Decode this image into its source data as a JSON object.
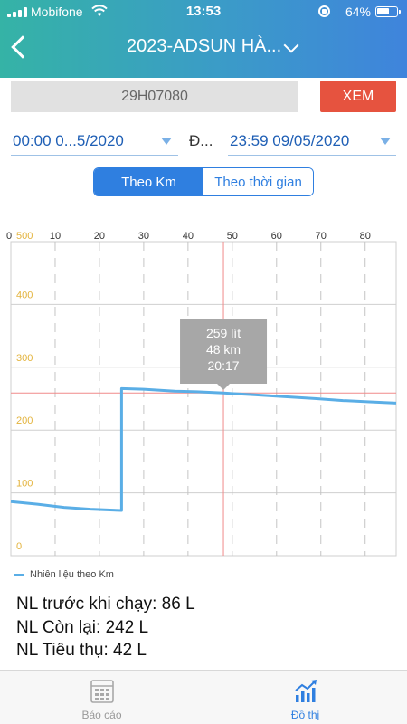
{
  "status_bar": {
    "carrier": "Mobifone",
    "time": "13:53",
    "battery": "64%"
  },
  "header": {
    "title": "2023-ADSUN HÀ..."
  },
  "plate": {
    "value": "29H07080"
  },
  "view_button": "XEM",
  "date_range": {
    "from": "00:00 0...5/2020",
    "separator": "Đ...",
    "to": "23:59 09/05/2020"
  },
  "mode_toggle": {
    "by_km": "Theo Km",
    "by_time": "Theo thời gian",
    "selected": "by_km"
  },
  "chart_data": {
    "type": "line",
    "x_axis": {
      "range": [
        0,
        87
      ],
      "ticks": [
        0,
        10,
        20,
        30,
        40,
        50,
        60,
        70,
        80
      ],
      "position": "top"
    },
    "y_axis": {
      "range": [
        0,
        500
      ],
      "ticks": [
        0,
        100,
        200,
        300,
        400,
        500
      ]
    },
    "grid": true,
    "series": [
      {
        "name": "Nhiên liệu theo Km",
        "color": "#5aaee6",
        "points": [
          [
            0,
            86
          ],
          [
            6,
            82
          ],
          [
            12,
            77
          ],
          [
            18,
            74
          ],
          [
            25,
            72
          ],
          [
            25,
            266
          ],
          [
            30,
            265
          ],
          [
            37,
            262
          ],
          [
            42,
            261
          ],
          [
            48,
            259
          ],
          [
            55,
            256
          ],
          [
            62,
            253
          ],
          [
            69,
            250
          ],
          [
            75,
            247
          ],
          [
            81,
            245
          ],
          [
            87,
            243
          ]
        ]
      }
    ],
    "cursor": {
      "x": 48,
      "y": 259
    },
    "tooltip": {
      "line1": "259 lít",
      "line2": "48 km",
      "line3": "20:17"
    }
  },
  "legend": {
    "label": "Nhiên liệu theo Km"
  },
  "summary": {
    "before": "NL trước khi chạy: 86 L",
    "remaining": "NL Còn lại: 242 L",
    "consumed": "NL Tiêu thụ: 42 L"
  },
  "tabs": [
    {
      "label": "Báo cáo",
      "icon": "calendar-grid-icon",
      "active": false
    },
    {
      "label": "Đồ thị",
      "icon": "chart-up-icon",
      "active": true
    }
  ]
}
